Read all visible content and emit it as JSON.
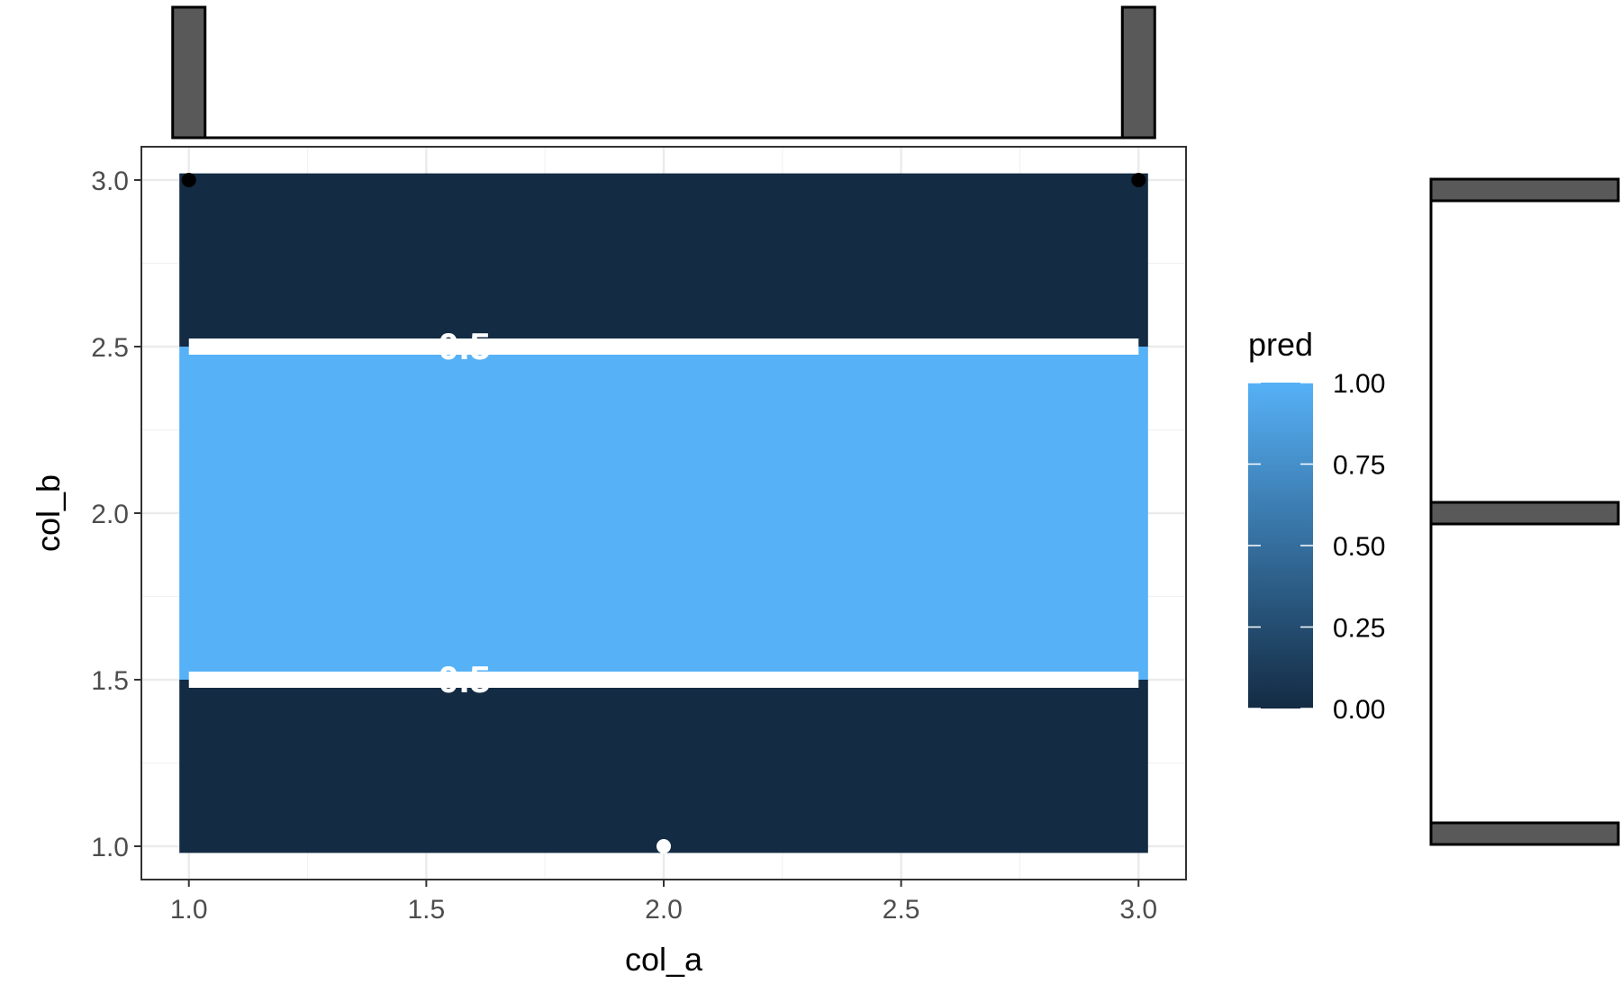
{
  "chart_data": {
    "type": "heatmap",
    "title": "",
    "xlabel": "col_a",
    "ylabel": "col_b",
    "xlim": [
      0.9,
      3.1
    ],
    "ylim": [
      0.9,
      3.1
    ],
    "x_ticks": [
      "1.0",
      "1.5",
      "2.0",
      "2.5",
      "3.0"
    ],
    "y_ticks": [
      "1.0",
      "1.5",
      "2.0",
      "2.5",
      "3.0"
    ],
    "grid": true,
    "tiles": [
      {
        "x_range": [
          1.0,
          3.0
        ],
        "y_range": [
          1.0,
          1.5
        ],
        "pred": 0.0
      },
      {
        "x_range": [
          1.0,
          3.0
        ],
        "y_range": [
          1.5,
          2.5
        ],
        "pred": 1.0
      },
      {
        "x_range": [
          1.0,
          3.0
        ],
        "y_range": [
          2.5,
          3.0
        ],
        "pred": 0.0
      }
    ],
    "contours": [
      {
        "y": 1.5,
        "label": "0.5"
      },
      {
        "y": 2.5,
        "label": "0.5"
      }
    ],
    "points": [
      {
        "x": 1.0,
        "y": 3.0,
        "color": "#000000"
      },
      {
        "x": 3.0,
        "y": 3.0,
        "color": "#000000"
      },
      {
        "x": 2.0,
        "y": 1.0,
        "color": "#ffffff"
      }
    ],
    "legend": {
      "title": "pred",
      "position": "right",
      "ticks": [
        "1.00",
        "0.75",
        "0.50",
        "0.25",
        "0.00"
      ],
      "low_color": "#132B43",
      "high_color": "#56B1F7"
    },
    "top_marginal": {
      "type": "bar",
      "x": [
        1.0,
        3.0
      ],
      "counts": [
        1,
        1
      ],
      "axis": "col_a"
    },
    "right_marginal": {
      "type": "bar",
      "y": [
        1.0,
        2.0,
        3.0
      ],
      "counts": [
        1,
        1,
        1
      ],
      "axis": "col_b"
    }
  }
}
